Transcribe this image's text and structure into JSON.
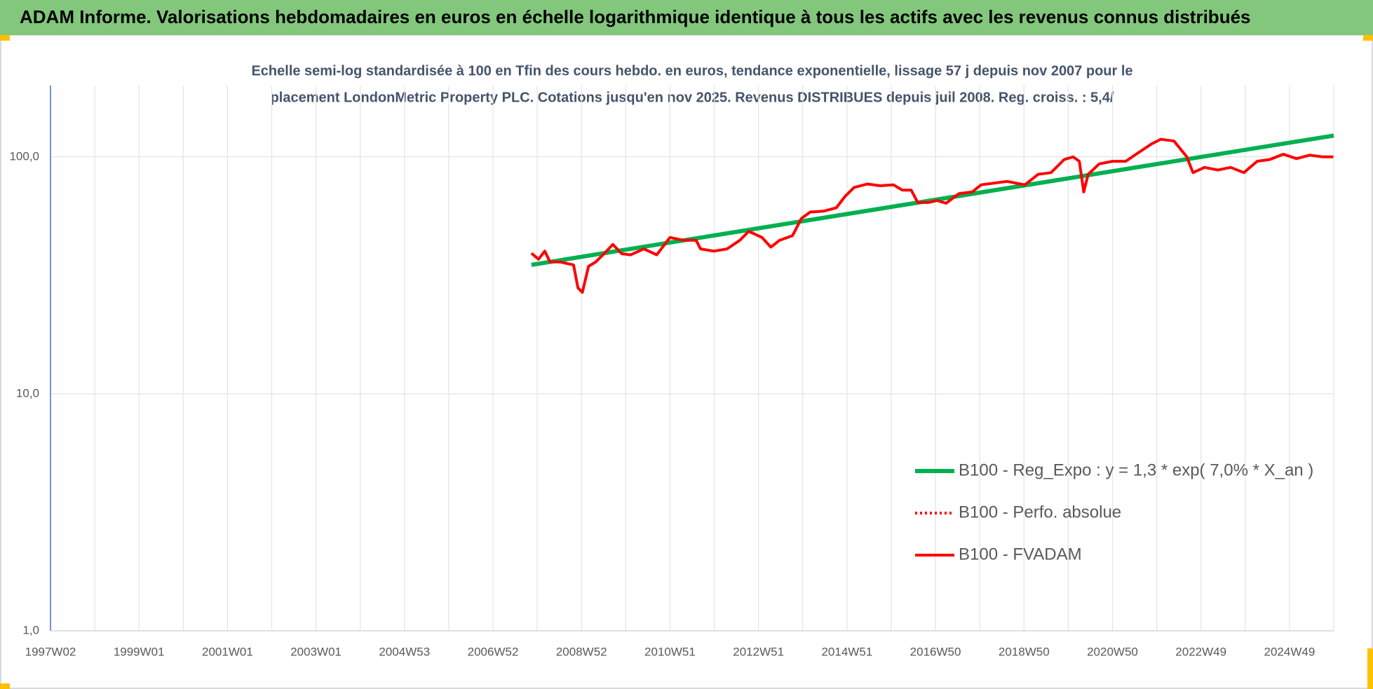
{
  "chart_data": {
    "type": "line",
    "header": "ADAM Informe. Valorisations hebdomadaires en euros en échelle logarithmique identique à tous les actifs avec les revenus connus distribués",
    "subtitle": [
      "Echelle semi-log standardisée à 100 en Tfin des cours hebdo. en euros, tendance exponentielle, lissage 57 j depuis nov 2007 pour le",
      "placement LondonMetric Property PLC. Cotations jusqu'en nov 2025.  Revenus DISTRIBUES depuis juil 2008.  Reg. croiss. : 5,4/"
    ],
    "log_y": true,
    "ylim": [
      1,
      200
    ],
    "yticks": [
      {
        "value": 1,
        "label": "1,0"
      },
      {
        "value": 10,
        "label": "10,0"
      },
      {
        "value": 100,
        "label": "100,0"
      }
    ],
    "xlim": [
      1997,
      2026
    ],
    "xticks": [
      {
        "value": 1997,
        "label": "1997W02"
      },
      {
        "value": 1999,
        "label": "1999W01"
      },
      {
        "value": 2001,
        "label": "2001W01"
      },
      {
        "value": 2003,
        "label": "2003W01"
      },
      {
        "value": 2005,
        "label": "2004W53"
      },
      {
        "value": 2007,
        "label": "2006W52"
      },
      {
        "value": 2009,
        "label": "2008W52"
      },
      {
        "value": 2011,
        "label": "2010W51"
      },
      {
        "value": 2013,
        "label": "2012W51"
      },
      {
        "value": 2015,
        "label": "2014W51"
      },
      {
        "value": 2017,
        "label": "2016W50"
      },
      {
        "value": 2019,
        "label": "2018W50"
      },
      {
        "value": 2021,
        "label": "2020W50"
      },
      {
        "value": 2023,
        "label": "2022W49"
      },
      {
        "value": 2025,
        "label": "2024W49"
      }
    ],
    "x_minor_grid": [
      1998,
      2000,
      2002,
      2004,
      2006,
      2008,
      2010,
      2012,
      2014,
      2016,
      2018,
      2020,
      2022,
      2024,
      2026
    ],
    "grid": true,
    "legend_position": "lower right",
    "series": [
      {
        "name": "B100 - Reg_Expo : y = 1,3 * exp( 7,0% *  X_an )",
        "color": "#00b050",
        "dash": false,
        "x": [
          2007.87,
          2026
        ],
        "values": [
          35,
          123
        ]
      },
      {
        "name": "B100 - Perfo. absolue",
        "color": "#ff0000",
        "dash": true,
        "x": [],
        "values": []
      },
      {
        "name": "B100 - FVADAM",
        "color": "#ff0000",
        "dash": false,
        "x": [
          2007.87,
          2008.03,
          2008.17,
          2008.29,
          2008.52,
          2008.82,
          2008.92,
          2009.02,
          2009.16,
          2009.32,
          2009.51,
          2009.71,
          2009.91,
          2010.11,
          2010.41,
          2010.7,
          2011.0,
          2011.3,
          2011.59,
          2011.69,
          2011.99,
          2012.29,
          2012.58,
          2012.78,
          2013.08,
          2013.28,
          2013.48,
          2013.77,
          2013.97,
          2014.17,
          2014.47,
          2014.76,
          2014.96,
          2015.16,
          2015.46,
          2015.75,
          2016.05,
          2016.25,
          2016.45,
          2016.6,
          2016.84,
          2017.04,
          2017.24,
          2017.53,
          2017.83,
          2018.03,
          2018.33,
          2018.62,
          2019.02,
          2019.32,
          2019.61,
          2019.91,
          2020.11,
          2020.25,
          2020.35,
          2020.45,
          2020.7,
          2021.0,
          2021.3,
          2021.59,
          2021.89,
          2022.09,
          2022.39,
          2022.68,
          2022.82,
          2023.08,
          2023.38,
          2023.67,
          2023.97,
          2024.27,
          2024.56,
          2024.86,
          2025.16,
          2025.46,
          2025.75,
          2025.99
        ],
        "values": [
          39.2,
          37,
          40,
          36,
          36,
          35,
          28,
          26.8,
          34.5,
          36,
          39,
          42.7,
          39,
          38.6,
          40.9,
          38.6,
          45.7,
          44.5,
          44.5,
          40.9,
          40,
          40.9,
          44.5,
          48.5,
          45.7,
          41.6,
          44.5,
          46.5,
          55,
          58.5,
          59,
          61,
          68.2,
          74.3,
          76.8,
          75.5,
          76.2,
          72.4,
          72.4,
          64.2,
          64.2,
          65.4,
          63.7,
          70,
          71.1,
          76.2,
          77.5,
          78.8,
          76.2,
          84.4,
          85.8,
          97.5,
          100,
          95.8,
          71.1,
          84.4,
          93.4,
          95.8,
          95.8,
          104.3,
          113.6,
          118.6,
          116.6,
          100,
          85.8,
          90.3,
          88,
          90.3,
          85.8,
          95.8,
          97.5,
          102.6,
          98.3,
          101.7,
          100,
          100
        ]
      }
    ]
  }
}
